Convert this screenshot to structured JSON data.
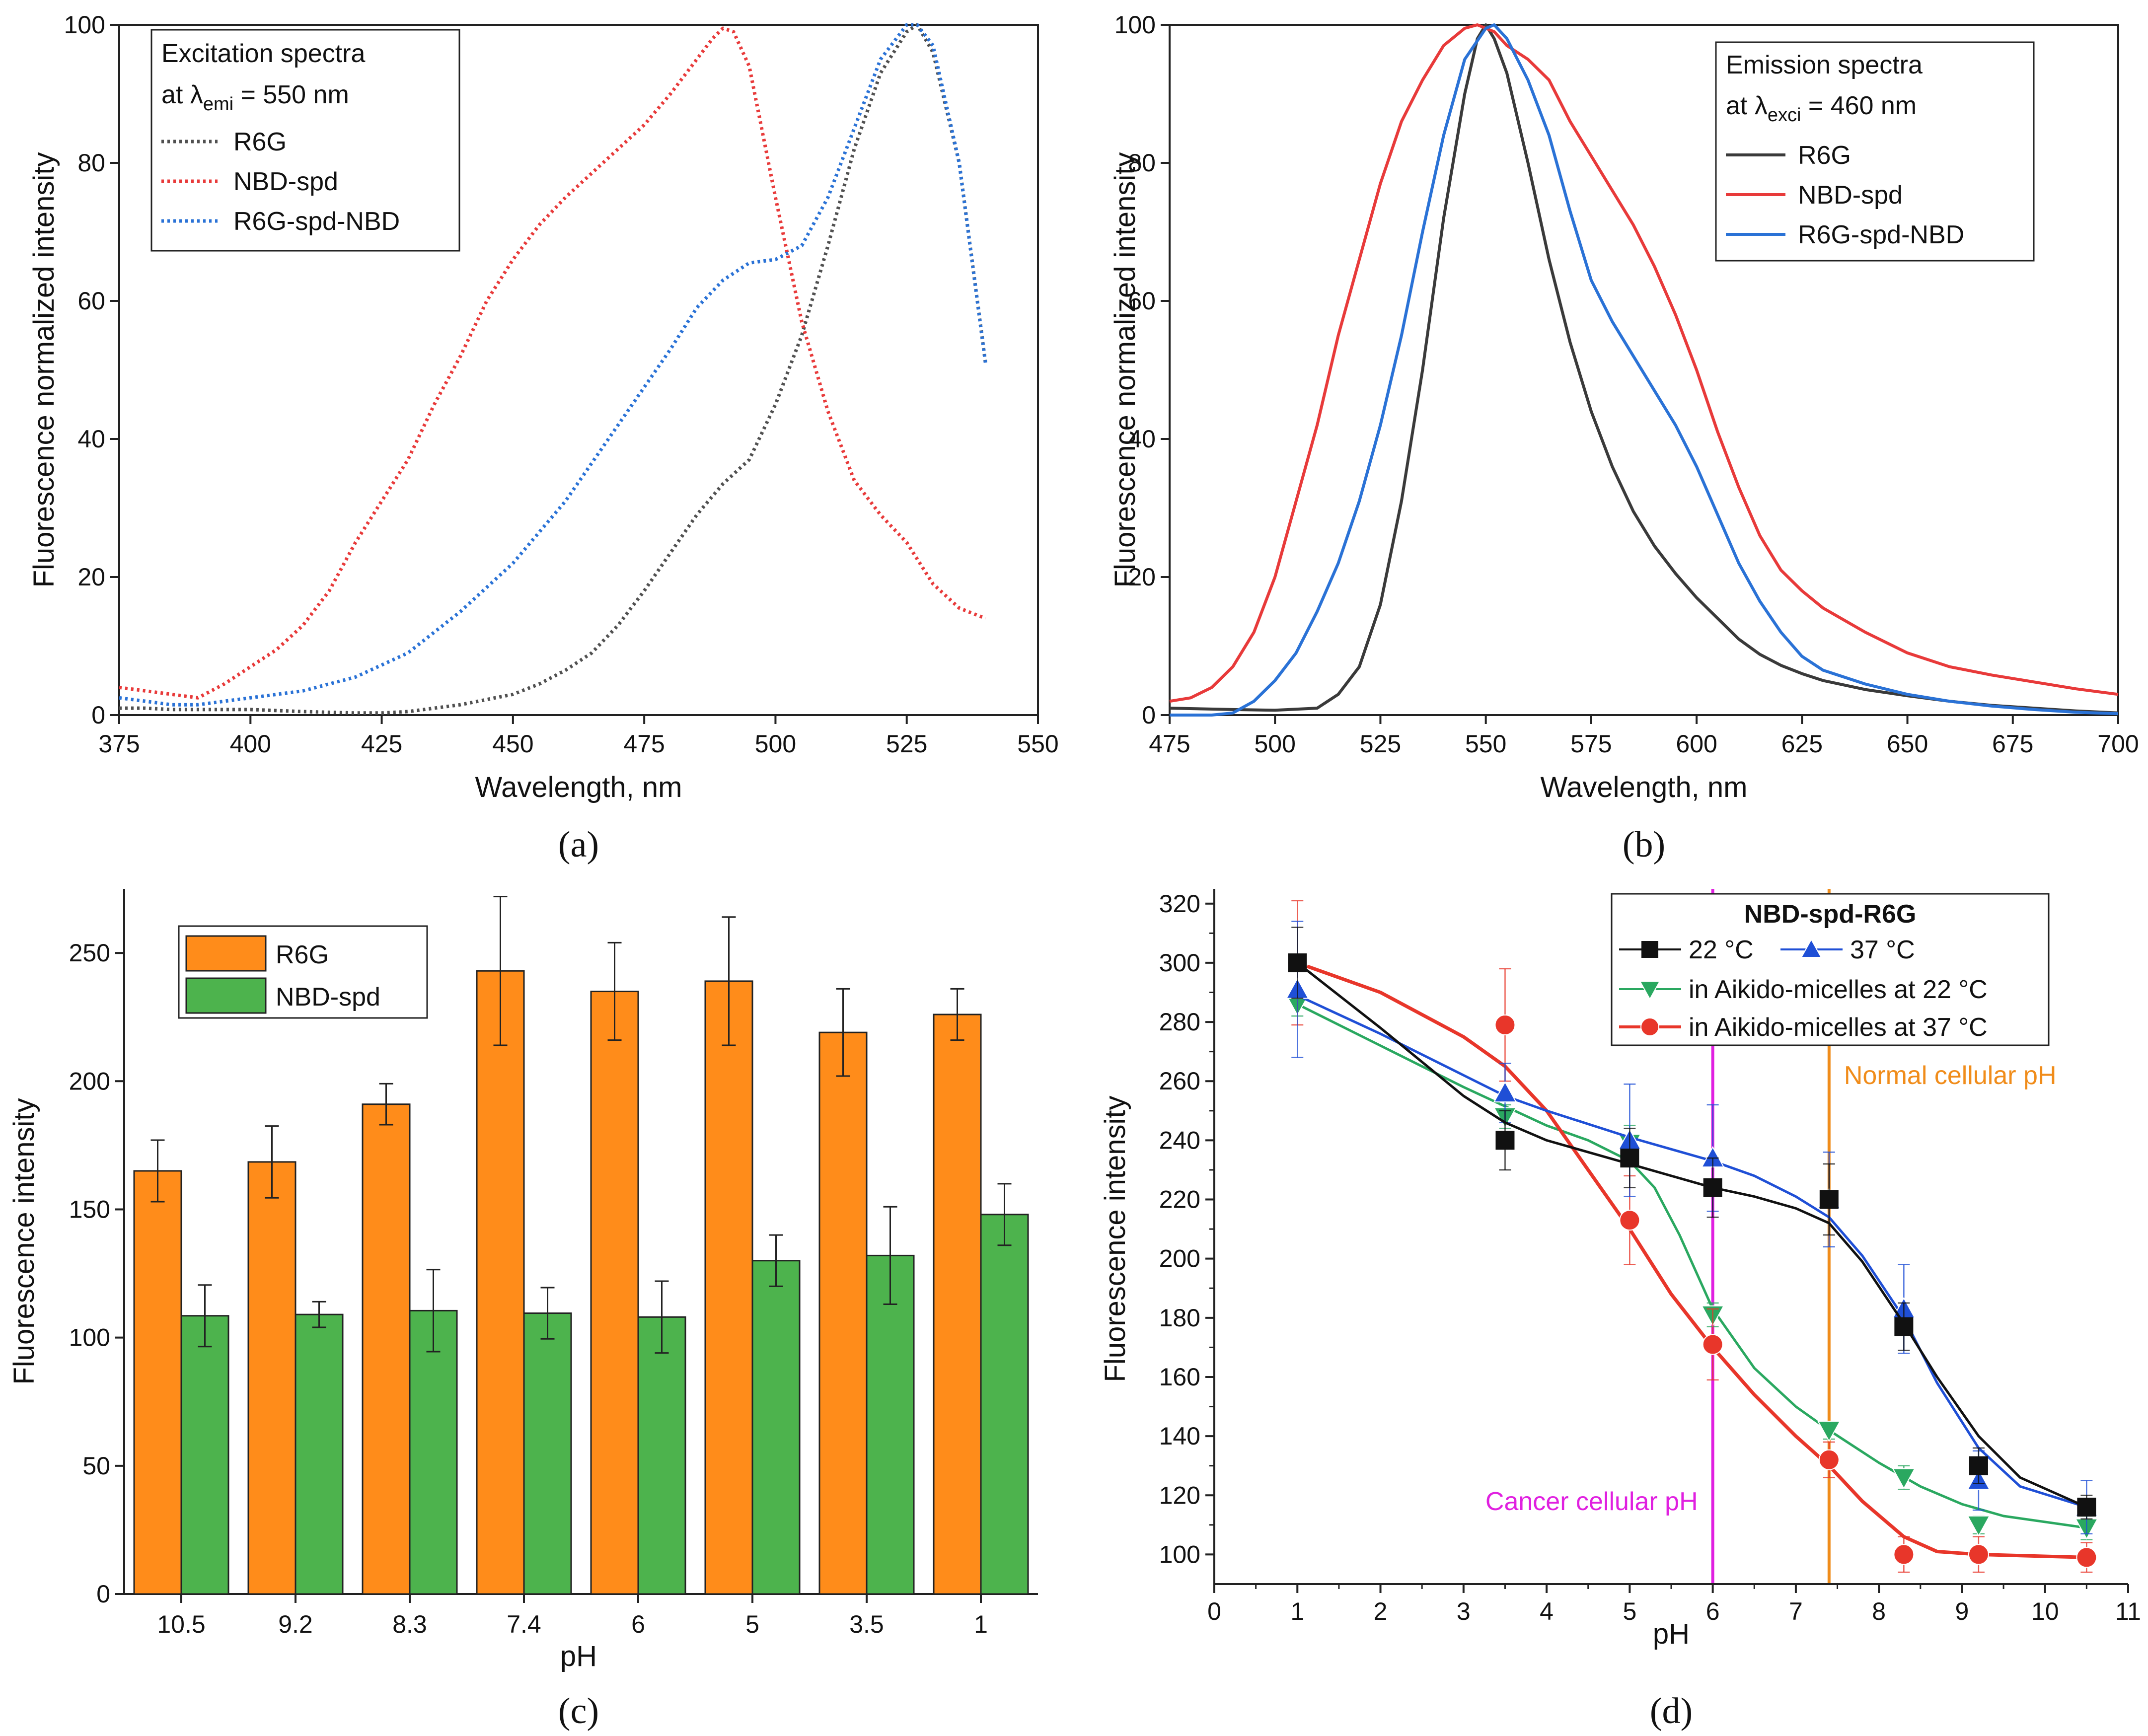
{
  "chart_data": [
    {
      "panel": "(a)",
      "type": "line",
      "xlabel": "Wavelength, nm",
      "ylabel": "Fluorescence normalized intensity",
      "xlim": [
        375,
        550
      ],
      "ylim": [
        0,
        100
      ],
      "xticks": [
        "375",
        "400",
        "425",
        "450",
        "475",
        "500",
        "525",
        "550"
      ],
      "yticks": [
        "0",
        "20",
        "40",
        "60",
        "80",
        "100"
      ],
      "legend": {
        "title_line1": "Excitation spectra",
        "title_line2_prefix": "at λ",
        "title_line2_sub": "emi",
        "title_line2_suffix": " = 550 nm",
        "position": "top-left"
      },
      "series": [
        {
          "name": "R6G",
          "color": "#505050",
          "style": "dotted",
          "x": [
            375,
            380,
            385,
            390,
            400,
            410,
            420,
            425,
            430,
            440,
            450,
            455,
            460,
            465,
            470,
            475,
            480,
            485,
            490,
            495,
            500,
            505,
            510,
            515,
            520,
            525,
            527,
            530,
            535,
            540
          ],
          "y": [
            1,
            1,
            0.8,
            0.8,
            0.8,
            0.5,
            0.3,
            0.3,
            0.5,
            1.5,
            3,
            4.5,
            6.5,
            9,
            13,
            18,
            23.5,
            29,
            33.5,
            37,
            45,
            55,
            68,
            82,
            93,
            99,
            100,
            96,
            80,
            51
          ]
        },
        {
          "name": "NBD-spd",
          "color": "#e83a3a",
          "style": "dotted",
          "x": [
            375,
            380,
            385,
            390,
            395,
            400,
            405,
            410,
            415,
            420,
            425,
            430,
            435,
            440,
            445,
            450,
            455,
            460,
            465,
            470,
            475,
            480,
            485,
            488,
            490,
            492,
            495,
            500,
            505,
            510,
            515,
            520,
            525,
            530,
            535,
            540
          ],
          "y": [
            4,
            3.5,
            3,
            2.5,
            4.5,
            7,
            9.5,
            13,
            18,
            25,
            31,
            37,
            45,
            52,
            60,
            66,
            71,
            75,
            78.5,
            82,
            85.5,
            90,
            95,
            98,
            99.5,
            99,
            94,
            75,
            57,
            44,
            34,
            29,
            25,
            19,
            15.5,
            14
          ]
        },
        {
          "name": "R6G-spd-NBD",
          "color": "#2a72d6",
          "style": "dotted",
          "x": [
            375,
            380,
            385,
            390,
            395,
            400,
            405,
            410,
            420,
            430,
            440,
            450,
            460,
            470,
            480,
            485,
            490,
            495,
            500,
            505,
            510,
            515,
            520,
            525,
            527,
            530,
            535,
            540
          ],
          "y": [
            2.5,
            2,
            1.5,
            1.5,
            2,
            2.5,
            3,
            3.5,
            5.5,
            9,
            15,
            22,
            31,
            42,
            53,
            59,
            63,
            65.5,
            66,
            68,
            75,
            85,
            95,
            100,
            100,
            97,
            80,
            51
          ]
        }
      ]
    },
    {
      "panel": "(b)",
      "type": "line",
      "xlabel": "Wavelength, nm",
      "ylabel": "Fluorescence normalized intensity",
      "xlim": [
        475,
        700
      ],
      "ylim": [
        0,
        100
      ],
      "xticks": [
        "475",
        "500",
        "525",
        "550",
        "575",
        "600",
        "625",
        "650",
        "675",
        "700"
      ],
      "yticks": [
        "0",
        "20",
        "40",
        "60",
        "80",
        "100"
      ],
      "legend": {
        "title_line1": "Emission spectra",
        "title_line2_prefix": "at λ",
        "title_line2_sub": "exci",
        "title_line2_suffix": " = 460 nm",
        "position": "top-right"
      },
      "series": [
        {
          "name": "R6G",
          "color": "#3a3a3a",
          "style": "solid",
          "x": [
            475,
            490,
            500,
            510,
            515,
            520,
            525,
            530,
            535,
            540,
            545,
            548,
            550,
            552,
            555,
            560,
            565,
            570,
            575,
            580,
            585,
            590,
            595,
            600,
            605,
            610,
            615,
            620,
            625,
            630,
            640,
            650,
            660,
            670,
            680,
            690,
            700
          ],
          "y": [
            1,
            0.8,
            0.7,
            1,
            3,
            7,
            16,
            31,
            50,
            72,
            90,
            98,
            100,
            98,
            93,
            80,
            66,
            54,
            44,
            36,
            29.5,
            24.5,
            20.5,
            17,
            14,
            11,
            8.8,
            7.2,
            6,
            5,
            3.7,
            2.8,
            2,
            1.4,
            1,
            0.6,
            0.3
          ]
        },
        {
          "name": "NBD-spd",
          "color": "#e83a3a",
          "style": "solid",
          "x": [
            475,
            480,
            485,
            490,
            495,
            500,
            505,
            510,
            515,
            520,
            525,
            530,
            535,
            540,
            545,
            548,
            550,
            552,
            555,
            560,
            565,
            570,
            575,
            580,
            585,
            590,
            595,
            600,
            605,
            610,
            615,
            620,
            625,
            630,
            640,
            650,
            660,
            670,
            680,
            690,
            700
          ],
          "y": [
            2,
            2.5,
            4,
            7,
            12,
            20,
            31,
            42,
            55,
            66,
            77,
            86,
            92,
            97,
            99.5,
            100,
            99.5,
            99,
            97,
            95,
            92,
            86,
            81,
            76,
            71,
            65,
            58,
            50,
            41,
            33,
            26,
            21,
            18,
            15.5,
            12,
            9,
            7,
            5.8,
            4.8,
            3.8,
            3
          ]
        },
        {
          "name": "R6G-spd-NBD",
          "color": "#2a72d6",
          "style": "solid",
          "x": [
            475,
            485,
            490,
            495,
            500,
            505,
            510,
            515,
            520,
            525,
            530,
            535,
            540,
            545,
            550,
            552,
            555,
            560,
            565,
            570,
            575,
            580,
            585,
            590,
            595,
            600,
            605,
            610,
            615,
            620,
            625,
            630,
            640,
            650,
            660,
            670,
            680,
            690,
            700
          ],
          "y": [
            0,
            0,
            0.3,
            2,
            5,
            9,
            15,
            22,
            31,
            42,
            55,
            70,
            84,
            95,
            99.5,
            100,
            98,
            92,
            84,
            73,
            63,
            57,
            52,
            47,
            42,
            36,
            29,
            22,
            16.5,
            12,
            8.5,
            6.5,
            4.5,
            3,
            2,
            1.3,
            0.8,
            0.4,
            0.2
          ]
        }
      ]
    },
    {
      "panel": "(c)",
      "type": "bar",
      "xlabel": "pH",
      "ylabel": "Fluorescence intensity",
      "ylim": [
        0,
        275
      ],
      "yticks": [
        "0",
        "50",
        "100",
        "150",
        "200",
        "250"
      ],
      "categories": [
        "10.5",
        "9.2",
        "8.3",
        "7.4",
        "6",
        "5",
        "3.5",
        "1"
      ],
      "legend_position": "top-left",
      "series": [
        {
          "name": "R6G",
          "color": "#ff8c1a",
          "values": [
            165,
            168.5,
            191,
            243,
            235,
            239,
            219,
            226
          ],
          "errors": [
            12,
            14,
            8,
            29,
            19,
            25,
            17,
            10
          ]
        },
        {
          "name": "NBD-spd",
          "color": "#4db34d",
          "values": [
            108.5,
            109,
            110.5,
            109.5,
            108,
            130,
            132,
            148
          ],
          "errors": [
            12,
            5,
            16,
            10,
            14,
            10,
            19,
            12
          ]
        }
      ]
    },
    {
      "panel": "(d)",
      "type": "scatter",
      "xlabel": "pH",
      "ylabel": "Fluorescence intensity",
      "xlim": [
        0,
        11
      ],
      "ylim": [
        90,
        325
      ],
      "xticks": [
        "0",
        "1",
        "2",
        "3",
        "4",
        "5",
        "6",
        "7",
        "8",
        "9",
        "10",
        "11"
      ],
      "yticks": [
        "100",
        "120",
        "140",
        "160",
        "180",
        "200",
        "220",
        "240",
        "260",
        "280",
        "300",
        "320"
      ],
      "legend": {
        "title": "NBD-spd-R6G",
        "label_22": "22 °C",
        "label_37": "37 °C",
        "label_m22": "in Aikido-micelles at 22 °C",
        "label_m37": "in Aikido-micelles at 37 °C",
        "position": "top-right"
      },
      "vlines": [
        {
          "x": 6,
          "color": "#e020e0",
          "label": "Cancer cellular pH"
        },
        {
          "x": 7.4,
          "color": "#f08c1a",
          "label": "Normal cellular pH"
        }
      ],
      "series": [
        {
          "name": "22 °C",
          "marker": "square",
          "color": "#111111",
          "x": [
            1,
            3.5,
            5,
            6,
            7.4,
            8.3,
            9.2,
            10.5
          ],
          "y": [
            300,
            240,
            234,
            224,
            220,
            177,
            130,
            116
          ],
          "errors": [
            12,
            10,
            10,
            10,
            12,
            8,
            6,
            4
          ],
          "fit_x": [
            1,
            2,
            3,
            3.5,
            4,
            5,
            5.5,
            6,
            6.5,
            7,
            7.4,
            7.8,
            8.3,
            8.7,
            9.2,
            9.7,
            10.5
          ],
          "fit_y": [
            300,
            278,
            255,
            246,
            240,
            232,
            228,
            224,
            221,
            217,
            212,
            199,
            178,
            160,
            140,
            126,
            116
          ]
        },
        {
          "name": "37 °C",
          "marker": "triangle-up",
          "color": "#1f4fd6",
          "x": [
            1,
            3.5,
            5,
            6,
            7.4,
            8.3,
            9.2,
            10.5
          ],
          "y": [
            291,
            256,
            240,
            234,
            220,
            183,
            125,
            116
          ],
          "errors": [
            23,
            10,
            19,
            18,
            16,
            15,
            10,
            9
          ],
          "fit_x": [
            1,
            2,
            3,
            3.5,
            4,
            5,
            5.5,
            6,
            6.5,
            7,
            7.4,
            7.8,
            8.3,
            8.7,
            9.2,
            9.7,
            10.5
          ],
          "fit_y": [
            289,
            276,
            262,
            255,
            250,
            241,
            237,
            233,
            228,
            221,
            214,
            201,
            180,
            158,
            136,
            123,
            116
          ]
        },
        {
          "name": "in Aikido-micelles at 22 °C",
          "marker": "triangle-down",
          "color": "#2aa860",
          "x": [
            1,
            3.5,
            5,
            6,
            7.4,
            8.3,
            9.2,
            10.5
          ],
          "y": [
            286,
            248,
            239,
            181,
            142,
            126,
            110,
            109
          ],
          "errors": [
            4,
            4,
            6,
            4,
            3,
            4,
            3,
            4
          ],
          "fit_x": [
            1,
            2,
            3,
            4,
            4.5,
            5,
            5.3,
            5.6,
            6,
            6.5,
            7,
            7.4,
            8,
            8.5,
            9,
            9.5,
            10.5
          ],
          "fit_y": [
            286,
            272,
            258,
            245,
            240,
            233,
            224,
            208,
            183,
            163,
            150,
            142,
            131,
            123,
            117,
            113,
            109
          ]
        },
        {
          "name": "in Aikido-micelles at 37 °C",
          "marker": "circle",
          "color": "#e8362a",
          "x": [
            1,
            3.5,
            5,
            6,
            7.4,
            8.3,
            9.2,
            10.5
          ],
          "y": [
            300,
            279,
            213,
            171,
            132,
            100,
            100,
            99
          ],
          "errors": [
            21,
            19,
            15,
            12,
            6,
            6,
            6,
            5
          ],
          "fit_x": [
            1,
            2,
            3,
            3.5,
            4,
            4.5,
            5,
            5.5,
            6,
            6.5,
            7,
            7.4,
            7.8,
            8.3,
            8.7,
            9.2,
            10.5
          ],
          "fit_y": [
            300,
            290,
            275,
            265,
            250,
            230,
            210,
            188,
            170,
            154,
            140,
            130,
            118,
            106,
            101,
            100,
            99
          ]
        }
      ]
    }
  ],
  "panel_labels": [
    "(a)",
    "(b)",
    "(c)",
    "(d)"
  ]
}
